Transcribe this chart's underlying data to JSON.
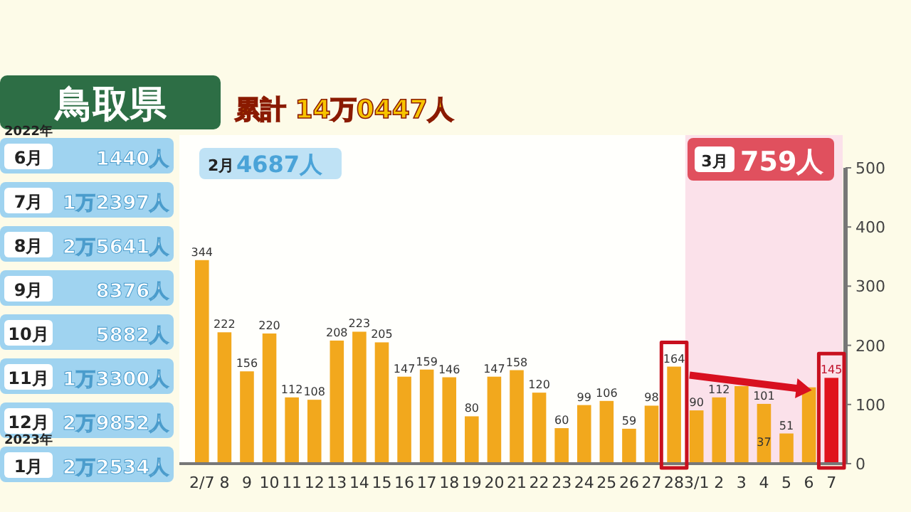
{
  "chart_data": {
    "type": "bar",
    "title": "鳥取県",
    "subtitle": "累計 14万0447人",
    "categories": [
      "2/7",
      "8",
      "9",
      "10",
      "11",
      "12",
      "13",
      "14",
      "15",
      "16",
      "17",
      "18",
      "19",
      "20",
      "21",
      "22",
      "23",
      "24",
      "25",
      "26",
      "27",
      "28",
      "3/1",
      "2",
      "3",
      "4",
      "5",
      "6",
      "7"
    ],
    "values": [
      344,
      222,
      156,
      220,
      112,
      108,
      208,
      223,
      205,
      147,
      159,
      146,
      80,
      147,
      158,
      120,
      60,
      99,
      106,
      59,
      98,
      164,
      90,
      112,
      131,
      101,
      51,
      129,
      145
    ],
    "colors": [
      "#f2a81d",
      "#f2a81d",
      "#f2a81d",
      "#f2a81d",
      "#f2a81d",
      "#f2a81d",
      "#f2a81d",
      "#f2a81d",
      "#f2a81d",
      "#f2a81d",
      "#f2a81d",
      "#f2a81d",
      "#f2a81d",
      "#f2a81d",
      "#f2a81d",
      "#f2a81d",
      "#f2a81d",
      "#f2a81d",
      "#f2a81d",
      "#f2a81d",
      "#f2a81d",
      "#f2a81d",
      "#f2a81d",
      "#f2a81d",
      "#f2a81d",
      "#f2a81d",
      "#f2a81d",
      "#f2a81d",
      "#e0121c"
    ],
    "value_labels": [
      "344",
      "222",
      "156",
      "220",
      "112",
      "108",
      "208",
      "223",
      "205",
      "147",
      "159",
      "146",
      "80",
      "147",
      "158",
      "120",
      "60",
      "99",
      "106",
      "59",
      "98",
      "164",
      "90",
      "112",
      null,
      "101",
      "51",
      null,
      "145"
    ],
    "ylim": [
      0,
      500
    ],
    "yticks": [
      0,
      100,
      200,
      300,
      400,
      500
    ],
    "bands": [
      {
        "axis": "x",
        "from": "3/1",
        "to": "7",
        "color": "#fbe1ea"
      }
    ],
    "annotations": [
      "2022年",
      "6月",
      "1440人",
      "7月",
      "1万2397人",
      "8月",
      "2万5641人",
      "9月",
      "8376人",
      "10月",
      "5882人",
      "11月",
      "1万3300人",
      "12月",
      "2万9852人",
      "2023年",
      "1月",
      "2万2534人",
      "2月",
      "4687人",
      "3月",
      "759人",
      {
        "text": "37",
        "x": "4",
        "y": 37
      }
    ]
  }
}
